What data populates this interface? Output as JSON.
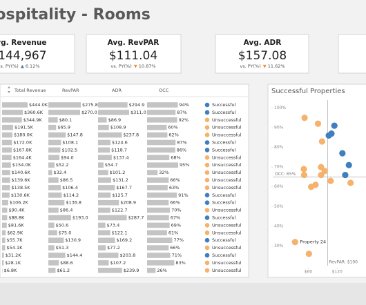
{
  "header": {
    "title": "Hospitality - Rooms"
  },
  "kpis": [
    {
      "label": "Avg. Revenue",
      "value": "$144,967",
      "comparison": "vs. PY(%)",
      "direction": "▲",
      "change": "6.12%"
    },
    {
      "label": "Avg. RevPAR",
      "value": "$111.04",
      "comparison": "vs. PY(%)",
      "direction": "▼",
      "change": "10.87%"
    },
    {
      "label": "Avg. ADR",
      "value": "$157.08",
      "comparison": "vs. PY(%)",
      "direction": "▼",
      "change": "11.62%"
    }
  ],
  "table": {
    "series": [
      {
        "name": "Total Revenue",
        "color": "#c4c4c4",
        "values": [
          444000,
          360600,
          344900,
          191500,
          180000,
          172000,
          167800,
          164400,
          154000,
          140600,
          139600,
          138500,
          130600,
          106200,
          90400,
          88800,
          81600,
          62900,
          55700,
          54100,
          31200,
          28100,
          6800
        ],
        "value_labels": [
          "$444.0K",
          "$360.6K",
          "$344.9K",
          "$191.5K",
          "$180.0K",
          "$172.0K",
          "$167.8K",
          "$164.4K",
          "$154.0K",
          "$140.6K",
          "$139.6K",
          "$138.5K",
          "$130.6K",
          "$106.2K",
          "$90.4K",
          "$88.8K",
          "$81.6K",
          "$62.9K",
          "$55.7K",
          "$54.1K",
          "$31.2K",
          "$28.1K",
          "$6.8K"
        ]
      },
      {
        "name": "RevPAR",
        "color": "#c4c4c4",
        "values": [
          275.8,
          270.0,
          80.1,
          65.9,
          147.8,
          108.1,
          102.5,
          94.0,
          52.2,
          32.4,
          86.5,
          106.4,
          114.2,
          136.8,
          86.4,
          193.0,
          50.6,
          75.0,
          130.9,
          51.3,
          144.4,
          88.6,
          61.2
        ],
        "value_labels": [
          "$275.8",
          "$270.0",
          "$80.1",
          "$65.9",
          "$147.8",
          "$108.1",
          "$102.5",
          "$94.0",
          "$52.2",
          "$32.4",
          "$86.5",
          "$106.4",
          "$114.2",
          "$136.8",
          "$86.4",
          "$193.0",
          "$50.6",
          "$75.0",
          "$130.9",
          "$51.3",
          "$144.4",
          "$88.6",
          "$61.2"
        ]
      },
      {
        "name": "ADR",
        "color": "#c4c4c4",
        "values": [
          294.9,
          311.0,
          86.9,
          108.9,
          237.8,
          124.6,
          118.7,
          137.4,
          54.7,
          101.2,
          131.2,
          167.7,
          125.7,
          208.9,
          122.7,
          287.7,
          73.4,
          122.1,
          169.2,
          77.2,
          203.8,
          107.2,
          239.9
        ],
        "value_labels": [
          "$294.9",
          "$311.0",
          "$86.9",
          "$108.9",
          "$237.8",
          "$124.6",
          "$118.7",
          "$137.4",
          "$54.7",
          "$101.2",
          "$131.2",
          "$167.7",
          "$125.7",
          "$208.9",
          "$122.7",
          "$287.7",
          "$73.4",
          "$122.1",
          "$169.2",
          "$77.2",
          "$203.8",
          "$107.2",
          "$239.9"
        ]
      },
      {
        "name": "OCC",
        "color": "#c4c4c4",
        "values": [
          94,
          87,
          92,
          60,
          62,
          87,
          86,
          68,
          95,
          32,
          66,
          63,
          91,
          66,
          70,
          67,
          69,
          61,
          77,
          66,
          71,
          83,
          26
        ],
        "value_labels": [
          "94%",
          "87%",
          "92%",
          "60%",
          "62%",
          "87%",
          "86%",
          "68%",
          "95%",
          "32%",
          "66%",
          "63%",
          "91%",
          "66%",
          "70%",
          "67%",
          "69%",
          "61%",
          "77%",
          "66%",
          "71%",
          "83%",
          "26%"
        ]
      }
    ],
    "status": [
      "Successful",
      "Successful",
      "Unsuccessful",
      "Unsuccessful",
      "Unsuccessful",
      "Successful",
      "Successful",
      "Unsuccessful",
      "Unsuccessful",
      "Unsuccessful",
      "Unsuccessful",
      "Unsuccessful",
      "Successful",
      "Successful",
      "Unsuccessful",
      "Successful",
      "Unsuccessful",
      "Unsuccessful",
      "Successful",
      "Unsuccessful",
      "Successful",
      "Unsuccessful",
      "Unsuccessful"
    ],
    "status_colors": {
      "Successful": "#3f7fbf",
      "Unsuccessful": "#f6b26b"
    }
  },
  "scatter": {
    "title": "Successful Properties",
    "xlim": [
      -14,
      180
    ],
    "xticks": [
      {
        "value": 60,
        "label": "$60"
      },
      {
        "value": 120,
        "label": "$120"
      }
    ],
    "ylim": [
      20,
      104
    ],
    "yticks": [
      {
        "value": 100,
        "label": "100%"
      },
      {
        "value": 90,
        "label": "90%"
      },
      {
        "value": 80,
        "label": "80%"
      },
      {
        "value": 70,
        "label": "70%"
      },
      {
        "value": 60,
        "label": "60%"
      },
      {
        "value": 50,
        "label": "50%"
      },
      {
        "value": 40,
        "label": "40%"
      },
      {
        "value": 30,
        "label": "30%"
      }
    ],
    "reference_lines": {
      "y": {
        "value": 65,
        "label": "OCC: 65%"
      },
      "x": {
        "value": 100,
        "label": "RevPAR: $100"
      }
    },
    "point_labels": [
      null,
      null,
      null,
      null,
      null,
      null,
      null,
      null,
      null,
      "Property 24",
      null,
      null,
      null,
      null,
      null,
      null,
      null,
      null,
      null,
      null,
      null,
      null,
      null
    ]
  }
}
